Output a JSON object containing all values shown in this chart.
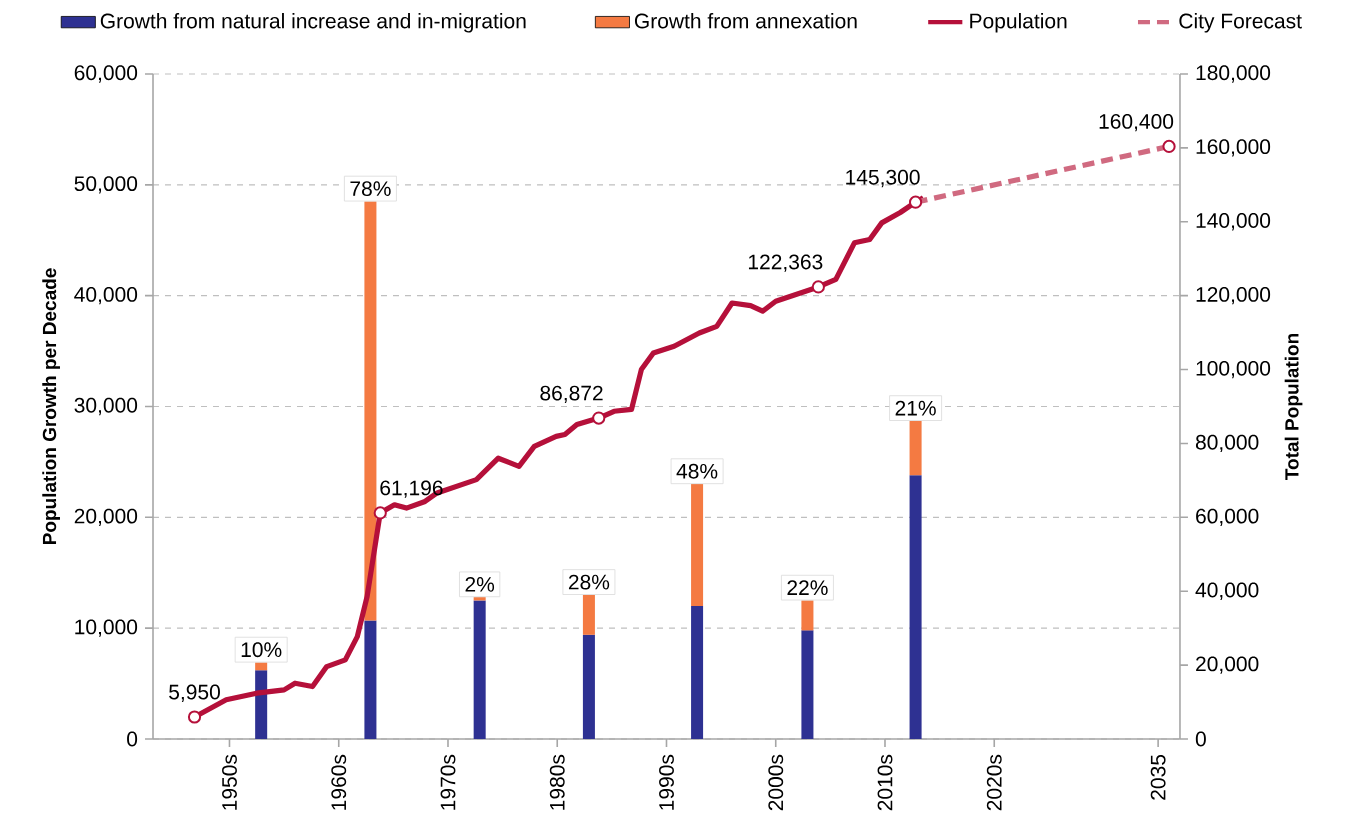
{
  "chart_data": {
    "type": "bar",
    "stacked": true,
    "ylabel": "Population Growth per Decade",
    "y2label": "Total Population",
    "x": [
      1952.9,
      1962.9,
      1972.9,
      1982.9,
      1992.8,
      2002.9,
      2012.8
    ],
    "xlim": [
      1943,
      2037
    ],
    "xticks": [
      {
        "value": 1950,
        "label": "1950s"
      },
      {
        "value": 1960,
        "label": "1960s"
      },
      {
        "value": 1970,
        "label": "1970s"
      },
      {
        "value": 1980,
        "label": "1980s"
      },
      {
        "value": 1990,
        "label": "1990s"
      },
      {
        "value": 2000,
        "label": "2000s"
      },
      {
        "value": 2010,
        "label": "2010s"
      },
      {
        "value": 2020,
        "label": "2020s"
      },
      2035
    ],
    "ylim": [
      0,
      60000
    ],
    "yticks": [
      {
        "value": 0,
        "label": "0"
      },
      {
        "value": 10000,
        "label": "10,000"
      },
      {
        "value": 20000,
        "label": "20,000"
      },
      {
        "value": 30000,
        "label": "30,000"
      },
      {
        "value": 40000,
        "label": "40,000"
      },
      {
        "value": 50000,
        "label": "50,000"
      },
      {
        "value": 60000,
        "label": "60,000"
      }
    ],
    "y2lim": [
      0,
      180000
    ],
    "y2ticks": [
      {
        "value": 0,
        "label": "0"
      },
      {
        "value": 20000,
        "label": "20,000"
      },
      {
        "value": 40000,
        "label": "40,000"
      },
      {
        "value": 60000,
        "label": "60,000"
      },
      {
        "value": 80000,
        "label": "80,000"
      },
      {
        "value": 100000,
        "label": "100,000"
      },
      {
        "value": 120000,
        "label": "120,000"
      },
      {
        "value": 140000,
        "label": "140,000"
      },
      {
        "value": 160000,
        "label": "160,000"
      },
      {
        "value": 180000,
        "label": "180,000"
      }
    ],
    "grid": "y",
    "legend": "top",
    "annotations": [
      {
        "text": "10%",
        "x": 1952.9,
        "y": 6900
      },
      {
        "text": "78%",
        "x": 1962.9,
        "y": 48500
      },
      {
        "text": "2%",
        "x": 1972.9,
        "y": 12800
      },
      {
        "text": "28%",
        "x": 1982.9,
        "y": 13000
      },
      {
        "text": "48%",
        "x": 1992.8,
        "y": 23000
      },
      {
        "text": "22%",
        "x": 2002.9,
        "y": 12500
      },
      {
        "text": "21%",
        "x": 2012.8,
        "y": 28700
      }
    ],
    "series": [
      {
        "name": "Growth from natural increase and in-migration",
        "color": "#2e3192",
        "values": [
          6200,
          10700,
          12500,
          9400,
          12000,
          9800,
          23800
        ]
      },
      {
        "name": "Growth from annexation",
        "color": "#f47a42",
        "values": [
          700,
          37800,
          300,
          3600,
          11000,
          2700,
          4900
        ]
      },
      {
        "name": "Population",
        "type": "line",
        "axis": "y2",
        "color": "#b5103a",
        "line_style": "solid",
        "x": [
          1946.8,
          1949.7,
          1952.5,
          1955,
          1956,
          1957.6,
          1958.9,
          1960.6,
          1961.7,
          1962.6,
          1963.8,
          1965.1,
          1966.2,
          1967.9,
          1969,
          1972.6,
          1974.6,
          1976.5,
          1977.9,
          1979.9,
          1980.7,
          1981.8,
          1983.8,
          1985.2,
          1986.8,
          1987.7,
          1988.8,
          1990.7,
          1993,
          1994.6,
          1996,
          1997.7,
          1998.8,
          2000,
          2003.9,
          2005.5,
          2007.2,
          2008.6,
          2009.7,
          2011.4,
          2012.8,
          2013.5
        ],
        "values": [
          5950,
          10600,
          12400,
          13300,
          15100,
          14200,
          19600,
          21400,
          27700,
          38600,
          61196,
          63400,
          62500,
          64300,
          66600,
          70200,
          76000,
          73800,
          79200,
          81900,
          82400,
          85100,
          86872,
          88700,
          89200,
          100000,
          104500,
          106300,
          109900,
          111700,
          118000,
          117300,
          115800,
          118500,
          122363,
          124400,
          134300,
          135200,
          139700,
          142500,
          145300,
          146500
        ]
      },
      {
        "type": "line",
        "name": "City Forecast",
        "axis": "y2",
        "color": "#d06a80",
        "line_style": "dashed",
        "x": [
          2012.8,
          2036
        ],
        "values": [
          145300,
          160400
        ]
      },
      {
        "type": "scatter",
        "axis": "y2",
        "color": "#b5103a",
        "marker": "circle",
        "x": [
          1946.8,
          1963.8,
          1983.8,
          2003.9,
          2012.8,
          2036
        ],
        "values": [
          5950,
          61196,
          86872,
          122363,
          145300,
          160400
        ],
        "value_labels": [
          "5,950",
          "61,196",
          "86,872",
          "122,363",
          "145,300",
          "160,400"
        ]
      }
    ]
  }
}
